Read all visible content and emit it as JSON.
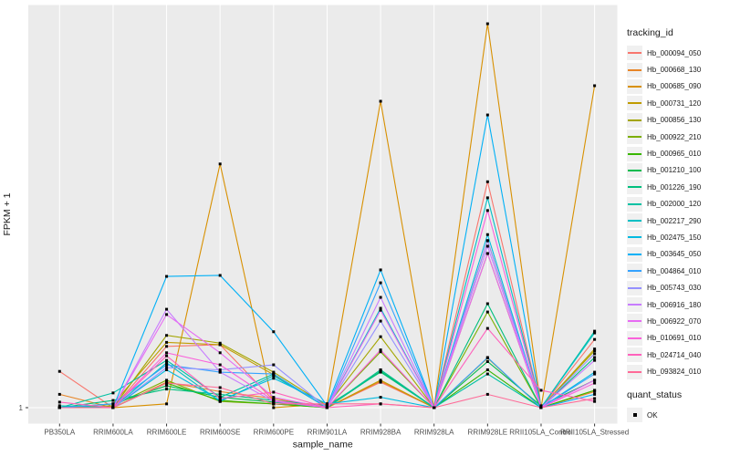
{
  "legend": {
    "tracking_title": "tracking_id",
    "quant_title": "quant_status",
    "quant_items": [
      {
        "label": "OK"
      }
    ]
  },
  "chart_data": {
    "type": "line",
    "title": "",
    "xlabel": "sample_name",
    "ylabel": "FPKM + 1",
    "y_scale": "log10",
    "y_ticks": [
      1
    ],
    "ylim_log10": [
      -0.17,
      4.42
    ],
    "grid": "major-only",
    "legend_position": "right",
    "panel_bg": "#EBEBEB",
    "gridline_color": "#FFFFFF",
    "tick_color": "#333333",
    "tick_label_color": "#4D4D4D",
    "axis_title_color": "#1A1A1A",
    "point_color": "#000000",
    "point_shape": "square",
    "quant_status_marker": "black-square",
    "categories": [
      "PB350LA",
      "RRIM600LA",
      "RRIM600LE",
      "RRIM600SE",
      "RRIM600PE",
      "RRIM901LA",
      "RRIM928BA",
      "RRIM928LA",
      "RRIM928LE",
      "RRII105LA_Control",
      "RRII105LA_Stressed"
    ],
    "series": [
      {
        "name": "Hb_000094_050",
        "color": "#F8766D",
        "values": [
          2.5,
          1,
          4.7,
          4.9,
          1.2,
          1,
          1.9,
          1,
          300,
          1,
          5.6
        ]
      },
      {
        "name": "Hb_000668_130",
        "color": "#E88526",
        "values": [
          1.4,
          1,
          1.9,
          1.5,
          1.26,
          1,
          1.95,
          1,
          68,
          1,
          1.5
        ]
      },
      {
        "name": "Hb_000685_090",
        "color": "#D89000",
        "values": [
          1,
          1,
          1.1,
          470,
          1,
          1.1,
          2290,
          1,
          16200,
          1,
          3390
        ]
      },
      {
        "name": "Hb_000731_120",
        "color": "#C09B00",
        "values": [
          1,
          1.1,
          5.2,
          4.9,
          2.3,
          1,
          2.0,
          1,
          3.5,
          1,
          4.4
        ]
      },
      {
        "name": "Hb_000856_130",
        "color": "#A3A500",
        "values": [
          1,
          1,
          6.2,
          5.1,
          2.45,
          1.05,
          6.0,
          1,
          49,
          1,
          4.2
        ]
      },
      {
        "name": "Hb_000922_210",
        "color": "#7CAE00",
        "values": [
          1,
          1.05,
          2.0,
          1.17,
          1.1,
          1,
          4.1,
          1,
          11.2,
          1,
          1.55
        ]
      },
      {
        "name": "Hb_000965_010",
        "color": "#39B600",
        "values": [
          1,
          1,
          1.86,
          1.2,
          1.1,
          1,
          2.6,
          1,
          2.6,
          1,
          1.55
        ]
      },
      {
        "name": "Hb_001210_100",
        "color": "#00BB4E",
        "values": [
          1,
          1.1,
          1.74,
          1.3,
          1.15,
          1,
          2.5,
          1,
          3.2,
          1.05,
          2.0
        ]
      },
      {
        "name": "Hb_001226_190",
        "color": "#00BF7D",
        "values": [
          1,
          1.2,
          1.6,
          1.4,
          1.2,
          1.05,
          2.45,
          1,
          13.8,
          1,
          3.55
        ]
      },
      {
        "name": "Hb_002000_120",
        "color": "#00C1A3",
        "values": [
          1,
          1.45,
          3.3,
          1.3,
          2.34,
          1,
          2.6,
          1,
          2.34,
          1,
          6.9
        ]
      },
      {
        "name": "Hb_002217_290",
        "color": "#00BFC4",
        "values": [
          1.05,
          1,
          3.1,
          1.17,
          2.24,
          1,
          12.3,
          1,
          200,
          1,
          6.6
        ]
      },
      {
        "name": "Hb_002475_150",
        "color": "#00BAE0",
        "values": [
          1,
          1,
          2.6,
          1.2,
          2.1,
          1.1,
          1.3,
          1,
          79,
          1,
          2.45
        ]
      },
      {
        "name": "Hb_003645_050",
        "color": "#00B0F6",
        "values": [
          1,
          1,
          27.5,
          28.2,
          6.8,
          1.05,
          32.4,
          1,
          1620,
          1,
          1.4
        ]
      },
      {
        "name": "Hb_004864_010",
        "color": "#35A2FF",
        "values": [
          1,
          1.1,
          2.95,
          2.45,
          2.34,
          1,
          23.4,
          1,
          3.55,
          1,
          2.34
        ]
      },
      {
        "name": "Hb_005743_030",
        "color": "#9590FF",
        "values": [
          1,
          1,
          2.75,
          2.6,
          2.95,
          1,
          8.9,
          1,
          67.6,
          1,
          3.9
        ]
      },
      {
        "name": "Hb_006916_180",
        "color": "#C77CFF",
        "values": [
          1,
          1,
          12.0,
          2.45,
          1.17,
          1,
          16.2,
          1,
          58.9,
          1,
          3.3
        ]
      },
      {
        "name": "Hb_006922_070",
        "color": "#E76BF3",
        "values": [
          1,
          1,
          10.5,
          4.0,
          1.3,
          1,
          11.7,
          1,
          49,
          1,
          2.0
        ]
      },
      {
        "name": "Hb_010691_010",
        "color": "#FA62DB",
        "values": [
          1,
          1,
          4.0,
          2.95,
          1.2,
          1,
          4.3,
          1,
          145,
          1,
          1.86
        ]
      },
      {
        "name": "Hb_024714_040",
        "color": "#FF62BC",
        "values": [
          1.15,
          1,
          3.7,
          1.26,
          1.48,
          1,
          1.1,
          1,
          7.4,
          1.55,
          1.17
        ]
      },
      {
        "name": "Hb_093824_010",
        "color": "#FF6A98",
        "values": [
          1,
          1,
          1.86,
          1.66,
          1.1,
          1.1,
          1.1,
          1,
          1.4,
          1,
          1.26
        ]
      }
    ]
  }
}
